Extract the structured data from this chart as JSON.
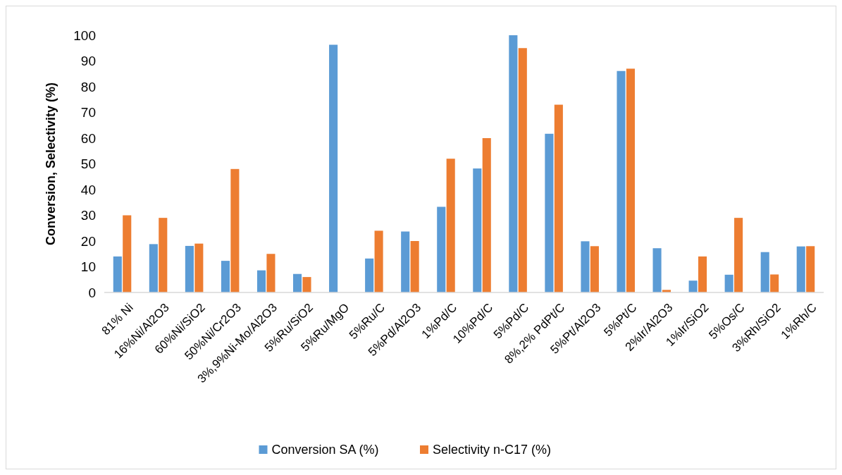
{
  "chart_data": {
    "type": "bar",
    "ylabel": "Conversion, Selectivity (%)",
    "categories": [
      "81% Ni",
      "16%Ni/Al2O3",
      "60%Ni/SiO2",
      "50%Ni/Cr2O3",
      "3%,9%Ni-Mo/Al2O3",
      "5%Ru/SiO2",
      "5%Ru/MgO",
      "5%Ru/C",
      "5%Pd/Al2O3",
      "1%Pd/C",
      "10%Pd/C",
      "5%Pd/C",
      "8%,2% PdPt/C",
      "5%Pt/Al2O3",
      "5%Pt/C",
      "2%Ir/Al2O3",
      "1%Ir/SiO2",
      "5%Os/C",
      "3%Rh/SiO2",
      "1%Rh/C"
    ],
    "series": [
      {
        "name": "Conversion SA (%)",
        "color": "#5b9bd5",
        "values": [
          14,
          18.8,
          18.1,
          12.3,
          8.6,
          7.2,
          96.3,
          13.2,
          23.7,
          33.3,
          48.2,
          100,
          61.7,
          19.9,
          86.1,
          17.2,
          4.6,
          6.9,
          15.7,
          17.9
        ]
      },
      {
        "name": "Selectivity n-C17 (%)",
        "color": "#ed7d31",
        "values": [
          30,
          29,
          19,
          48,
          15,
          6,
          0,
          24,
          20,
          52,
          60,
          95,
          73,
          18,
          87,
          1,
          14,
          29,
          7,
          18
        ]
      }
    ],
    "ylim": [
      0,
      100
    ],
    "yticks": [
      0,
      10,
      20,
      30,
      40,
      50,
      60,
      70,
      80,
      90,
      100
    ],
    "grid": false,
    "legend": "bottom"
  }
}
